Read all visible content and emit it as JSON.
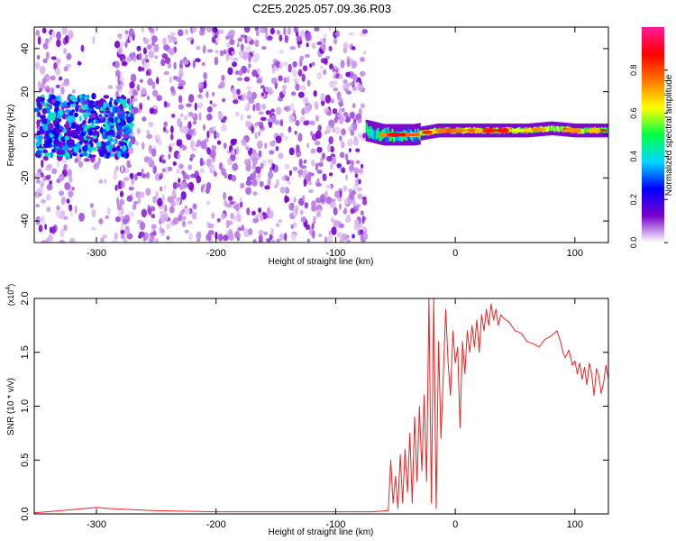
{
  "title": "C2E5.2025.057.09.36.R03",
  "chart_data": [
    {
      "type": "heatmap",
      "xlabel": "Height of straight line (km)",
      "ylabel": "Frequency (Hz)",
      "xlim": [
        -352,
        128
      ],
      "ylim": [
        -50,
        50
      ],
      "x_ticks": [
        -300,
        -200,
        -100,
        0,
        100
      ],
      "y_ticks": [
        -40,
        -20,
        0,
        20,
        40
      ],
      "colorbar": {
        "label": "Normalized spectral amplitude",
        "range": [
          0,
          1
        ],
        "ticks": [
          "0.0",
          "0.2",
          "0.4",
          "0.6",
          "0.8"
        ],
        "colors": [
          "#ffffff",
          "#7700cc",
          "#0000ff",
          "#00d8ff",
          "#00ff44",
          "#ffff00",
          "#ff7700",
          "#ff0000",
          "#ff1a9a"
        ]
      },
      "regions": [
        {
          "name": "broadband noise",
          "x": [
            -350,
            -75
          ],
          "freq": [
            -50,
            50
          ],
          "amplitude": 0.12
        },
        {
          "name": "broadband dense band",
          "x": [
            -350,
            -270
          ],
          "freq": [
            -10,
            18
          ],
          "amplitude": 0.35
        },
        {
          "name": "signal tone",
          "x": [
            -75,
            128
          ],
          "freq": [
            -3,
            6
          ],
          "amplitude": 0.75
        }
      ],
      "signal_centerline": {
        "x": [
          -75,
          -60,
          -45,
          -35,
          -25,
          -15,
          -5,
          5,
          20,
          40,
          60,
          80,
          100,
          125
        ],
        "freq": [
          2,
          0,
          0,
          0,
          1,
          2,
          2,
          2,
          2,
          2,
          2,
          3,
          2,
          2
        ]
      }
    },
    {
      "type": "line",
      "xlabel": "Height of straight line (km)",
      "ylabel": "SNR (10 * v/v)",
      "y_multiplier": "(x10",
      "y_multiplier_exp": "4",
      "y_multiplier_close": ")",
      "xlim": [
        -352,
        128
      ],
      "ylim": [
        0,
        2.0
      ],
      "x_ticks": [
        -300,
        -200,
        -100,
        0,
        100
      ],
      "y_ticks": [
        "0.0",
        "0.5",
        "1.0",
        "1.5",
        "2.0"
      ],
      "line_color": "#ee2222",
      "series": [
        {
          "x": [
            -352,
            -330,
            -310,
            -300,
            -290,
            -270,
            -250,
            -200,
            -150,
            -100,
            -70,
            -56,
            -54,
            -52,
            -50,
            -48,
            -46,
            -44,
            -42,
            -40,
            -38,
            -36,
            -34,
            -32,
            -30,
            -28,
            -26,
            -24,
            -22,
            -20,
            -18,
            -16,
            -14,
            -12,
            -10,
            -8,
            -6,
            -4,
            -2,
            0,
            2,
            4,
            6,
            8,
            10,
            12,
            14,
            16,
            18,
            20,
            22,
            24,
            26,
            28,
            30,
            32,
            34,
            36,
            38,
            40,
            45,
            50,
            55,
            60,
            65,
            70,
            75,
            80,
            85,
            88,
            90,
            92,
            95,
            98,
            100,
            102,
            104,
            106,
            108,
            110,
            112,
            114,
            116,
            118,
            120,
            122,
            124,
            126,
            128
          ],
          "y": [
            0.01,
            0.03,
            0.05,
            0.06,
            0.05,
            0.04,
            0.03,
            0.02,
            0.02,
            0.02,
            0.02,
            0.03,
            0.5,
            0.1,
            0.35,
            0.05,
            0.55,
            0.1,
            0.6,
            0.2,
            0.75,
            0.1,
            0.9,
            0.3,
            1.0,
            0.4,
            1.1,
            0.3,
            2.0,
            0.1,
            2.0,
            0.05,
            1.6,
            0.7,
            1.3,
            1.9,
            1.4,
            1.1,
            1.7,
            1.4,
            1.55,
            0.8,
            1.6,
            1.3,
            1.7,
            1.5,
            1.75,
            1.55,
            1.8,
            1.5,
            1.85,
            1.7,
            1.9,
            1.75,
            1.95,
            1.8,
            1.9,
            1.75,
            1.85,
            1.82,
            1.78,
            1.7,
            1.68,
            1.6,
            1.58,
            1.55,
            1.62,
            1.65,
            1.7,
            1.6,
            1.5,
            1.45,
            1.52,
            1.38,
            1.42,
            1.3,
            1.4,
            1.25,
            1.36,
            1.2,
            1.4,
            1.3,
            1.1,
            1.35,
            1.28,
            1.12,
            1.22,
            1.38,
            1.25
          ]
        }
      ]
    }
  ]
}
